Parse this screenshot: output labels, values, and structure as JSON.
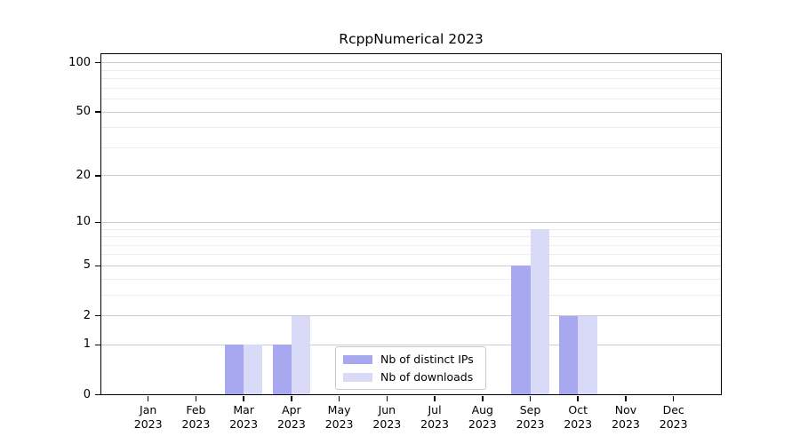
{
  "figure": {
    "background": "#ffffff"
  },
  "chart_data": {
    "type": "bar",
    "title": "RcppNumerical 2023",
    "categories": [
      "Jan 2023",
      "Feb 2023",
      "Mar 2023",
      "Apr 2023",
      "May 2023",
      "Jun 2023",
      "Jul 2023",
      "Aug 2023",
      "Sep 2023",
      "Oct 2023",
      "Nov 2023",
      "Dec 2023"
    ],
    "series": [
      {
        "name": "Nb of distinct IPs",
        "color": "#a8a8f0",
        "values": [
          0,
          0,
          1,
          1,
          0,
          0,
          0,
          0,
          5,
          2,
          0,
          0
        ]
      },
      {
        "name": "Nb of downloads",
        "color": "#d9d9f8",
        "values": [
          0,
          0,
          1,
          2,
          0,
          0,
          0,
          0,
          9,
          2,
          0,
          0
        ]
      }
    ],
    "xlabel": "",
    "ylabel": "",
    "y_scale": "log1p",
    "y_ticks": [
      0,
      1,
      2,
      5,
      10,
      20,
      50,
      100
    ],
    "y_minor_gridlines": [
      3,
      4,
      6,
      7,
      8,
      9,
      30,
      40,
      60,
      70,
      80,
      90
    ],
    "ylim": [
      0,
      113
    ],
    "grid": true,
    "legend": {
      "position": "lower center"
    },
    "colors": {
      "axis": "#000000",
      "major_grid": "#cccccc",
      "minor_grid": "#ededed",
      "legend_border": "#c9c9c9"
    }
  }
}
